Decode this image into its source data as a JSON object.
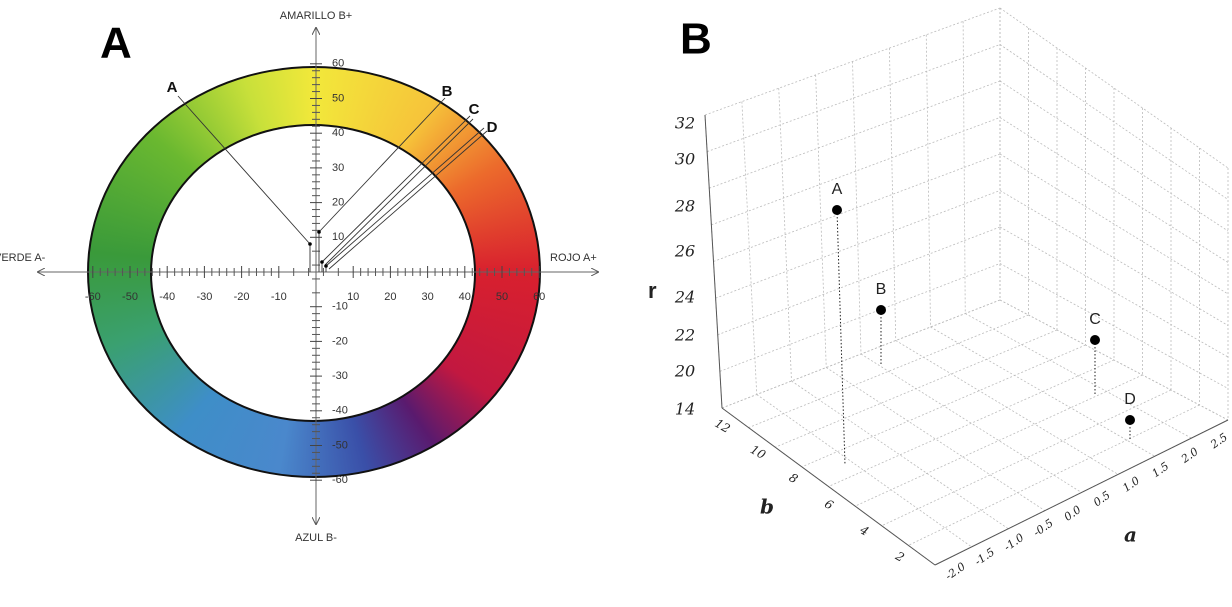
{
  "panels": [
    {
      "label": "A",
      "axes": {
        "top": "AMARILLO B+",
        "bottom": "AZUL B-",
        "left": "VERDE A-",
        "right": "ROJO A+"
      },
      "x_ticks": [
        -60,
        -50,
        -40,
        -30,
        -20,
        -10,
        10,
        20,
        30,
        40,
        50,
        60
      ],
      "y_ticks": [
        60,
        50,
        40,
        30,
        20,
        10,
        -10,
        -20,
        -30,
        -40,
        -50,
        -60
      ],
      "points": [
        "A",
        "B",
        "C",
        "D"
      ]
    },
    {
      "label": "B",
      "z_axis_label": "r",
      "z_ticks": [
        "32",
        "30",
        "28",
        "26",
        "24",
        "22",
        "20",
        "14"
      ],
      "depth_axis_label": "b",
      "depth_ticks": [
        "12",
        "10",
        "8",
        "6",
        "4",
        "2"
      ],
      "right_axis_label": "a",
      "right_ticks": [
        "-2.0",
        "-1.5",
        "-1.0",
        "-0.5",
        "0.0",
        "0.5",
        "1.0",
        "1.5",
        "2.0",
        "2.5"
      ],
      "points": [
        "A",
        "B",
        "C",
        "D"
      ]
    }
  ]
}
